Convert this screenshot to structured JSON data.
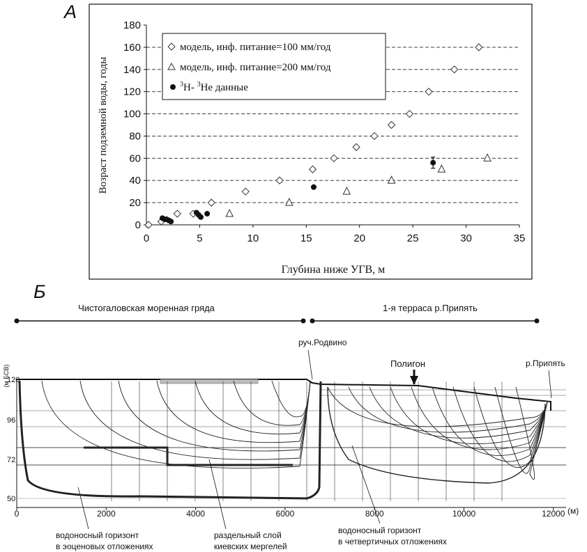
{
  "panel_a_label": "А",
  "panel_b_label": "Б",
  "chart_data": [
    {
      "type": "scatter",
      "xlabel": "Глубина ниже УГВ, м",
      "ylabel": "Возраст подземной воды, годы",
      "xlim": [
        0,
        35
      ],
      "ylim": [
        0,
        180
      ],
      "xticks": [
        0,
        5,
        10,
        15,
        20,
        25,
        30,
        35
      ],
      "yticks": [
        0,
        20,
        40,
        60,
        80,
        100,
        120,
        140,
        160,
        180
      ],
      "grid": "horizontal dashed",
      "legend_position": "top-left",
      "series": [
        {
          "name": "модель, инф. питание=100 мм/год",
          "marker": "diamond",
          "x": [
            0.2,
            1.4,
            2.9,
            4.4,
            6.1,
            9.3,
            12.5,
            15.6,
            17.6,
            19.7,
            21.4,
            23.0,
            24.7,
            26.5,
            28.9,
            31.2
          ],
          "y": [
            0,
            3,
            10,
            10,
            20,
            30,
            40,
            50,
            60,
            70,
            80,
            90,
            100,
            120,
            140,
            160
          ]
        },
        {
          "name": "модель, инф. питание=200 мм/год",
          "marker": "triangle",
          "x": [
            7.8,
            13.4,
            18.8,
            23.0,
            27.7,
            32.0
          ],
          "y": [
            10,
            20,
            30,
            40,
            50,
            60
          ]
        },
        {
          "name_parts": {
            "sup1": "3",
            "mid": "H- ",
            "sup2": "3",
            "tail": "He  данные"
          },
          "marker": "dot",
          "x": [
            1.5,
            1.7,
            1.9,
            2.1,
            2.3,
            4.7,
            4.9,
            5.1,
            5.7,
            15.7,
            26.9
          ],
          "y": [
            6,
            5,
            5,
            4,
            3,
            11,
            9,
            7,
            10,
            34,
            56
          ],
          "error_bar": {
            "x": 26.9,
            "low": 51,
            "high": 61
          }
        }
      ]
    },
    {
      "type": "cross-section",
      "y_axis_unit": "(м БСВ)",
      "y_ticks": [
        "120",
        "96",
        "72",
        "50"
      ],
      "x_unit": "(м)",
      "x_ticks": [
        "0",
        "2000",
        "4000",
        "6000",
        "8000",
        "10000",
        "12000"
      ],
      "zone_labels": [
        "Чистогаловская моренная гряда",
        "1-я терраса р.Припять"
      ],
      "point_labels": [
        "руч.Родвино",
        "Полигон",
        "р.Припять"
      ],
      "layer_labels": [
        [
          "водоносный горизонт",
          "в эоценовых отложениях"
        ],
        [
          "раздельный слой",
          "киевских мергелей"
        ],
        [
          "водоносный горизонт",
          "в четвертичных отложениях"
        ]
      ]
    }
  ]
}
